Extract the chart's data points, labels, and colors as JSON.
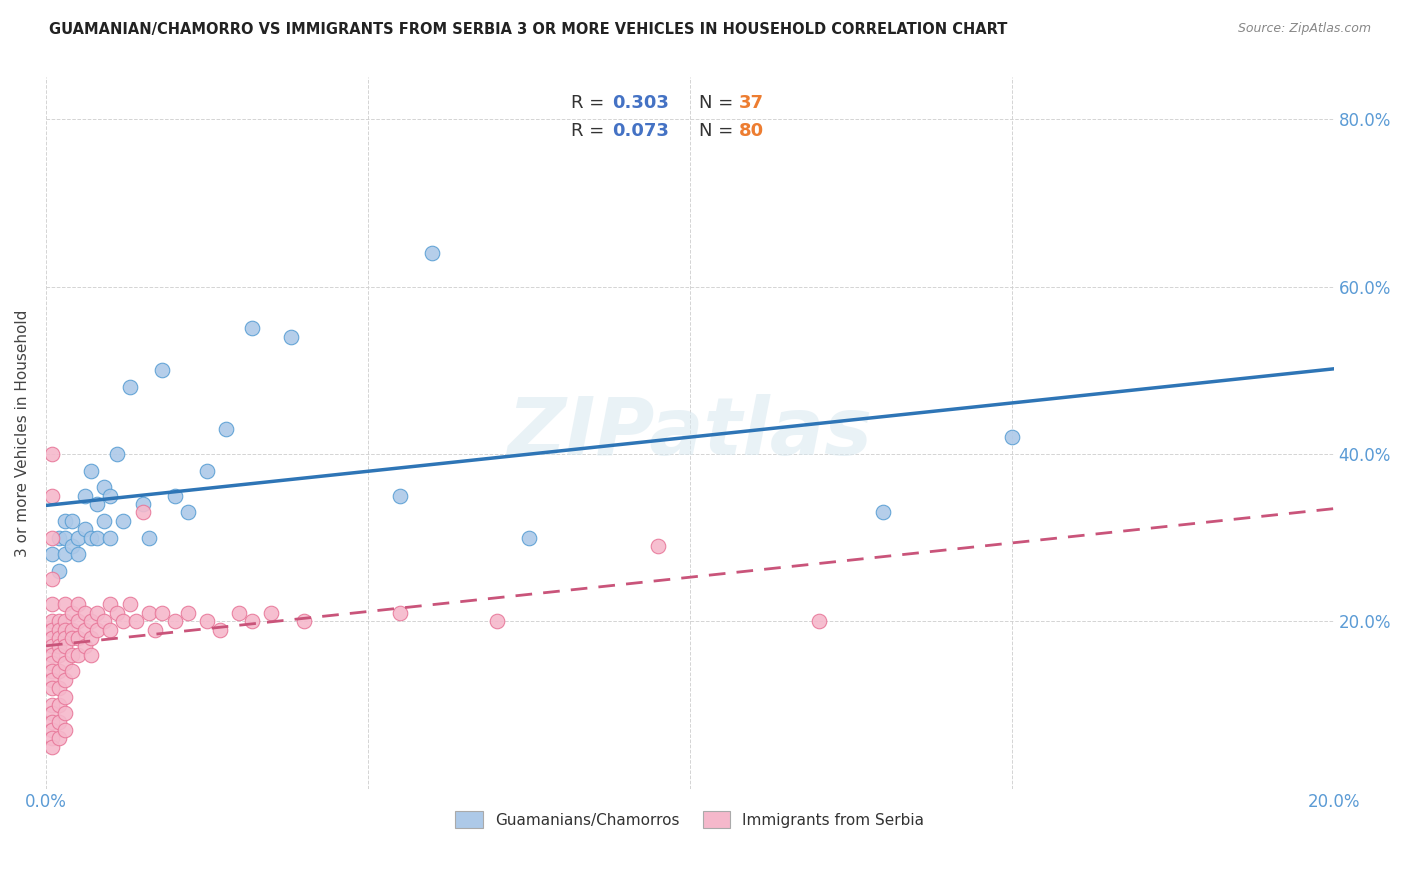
{
  "title": "GUAMANIAN/CHAMORRO VS IMMIGRANTS FROM SERBIA 3 OR MORE VEHICLES IN HOUSEHOLD CORRELATION CHART",
  "source": "Source: ZipAtlas.com",
  "ylabel": "3 or more Vehicles in Household",
  "xlim": [
    0.0,
    0.2
  ],
  "ylim": [
    0.0,
    0.85
  ],
  "x_tick_vals": [
    0.0,
    0.05,
    0.1,
    0.15,
    0.2
  ],
  "x_tick_labels": [
    "0.0%",
    "",
    "",
    "",
    "20.0%"
  ],
  "y_tick_vals": [
    0.0,
    0.2,
    0.4,
    0.6,
    0.8
  ],
  "y_tick_labels_right": [
    "",
    "20.0%",
    "40.0%",
    "60.0%",
    "80.0%"
  ],
  "blue_R": 0.303,
  "blue_N": 37,
  "pink_R": 0.073,
  "pink_N": 80,
  "blue_color": "#adc9e8",
  "pink_color": "#f5b8cb",
  "blue_edge_color": "#5a9fd4",
  "pink_edge_color": "#e8789a",
  "blue_line_color": "#2e75b6",
  "pink_line_color": "#c9547a",
  "watermark": "ZIPatlas",
  "legend_R_color": "#4472c4",
  "legend_N_color": "#ed7d31",
  "bg_color": "#ffffff",
  "grid_color": "#d0d0d0",
  "axis_color": "#5b9bd5",
  "blue_x": [
    0.001,
    0.002,
    0.002,
    0.003,
    0.003,
    0.003,
    0.004,
    0.004,
    0.005,
    0.005,
    0.006,
    0.006,
    0.007,
    0.007,
    0.008,
    0.008,
    0.009,
    0.009,
    0.01,
    0.01,
    0.011,
    0.012,
    0.013,
    0.015,
    0.016,
    0.018,
    0.02,
    0.022,
    0.025,
    0.028,
    0.032,
    0.038,
    0.055,
    0.06,
    0.075,
    0.13,
    0.15
  ],
  "blue_y": [
    0.28,
    0.26,
    0.3,
    0.28,
    0.3,
    0.32,
    0.29,
    0.32,
    0.3,
    0.28,
    0.31,
    0.35,
    0.3,
    0.38,
    0.3,
    0.34,
    0.32,
    0.36,
    0.3,
    0.35,
    0.4,
    0.32,
    0.48,
    0.34,
    0.3,
    0.5,
    0.35,
    0.33,
    0.38,
    0.43,
    0.55,
    0.54,
    0.35,
    0.64,
    0.3,
    0.33,
    0.42
  ],
  "pink_x": [
    0.001,
    0.001,
    0.001,
    0.001,
    0.001,
    0.001,
    0.001,
    0.001,
    0.001,
    0.001,
    0.001,
    0.001,
    0.001,
    0.001,
    0.001,
    0.001,
    0.001,
    0.001,
    0.001,
    0.001,
    0.002,
    0.002,
    0.002,
    0.002,
    0.002,
    0.002,
    0.002,
    0.002,
    0.002,
    0.002,
    0.003,
    0.003,
    0.003,
    0.003,
    0.003,
    0.003,
    0.003,
    0.003,
    0.003,
    0.003,
    0.004,
    0.004,
    0.004,
    0.004,
    0.004,
    0.005,
    0.005,
    0.005,
    0.005,
    0.006,
    0.006,
    0.006,
    0.007,
    0.007,
    0.007,
    0.008,
    0.008,
    0.009,
    0.01,
    0.01,
    0.011,
    0.012,
    0.013,
    0.014,
    0.015,
    0.016,
    0.017,
    0.018,
    0.02,
    0.022,
    0.025,
    0.027,
    0.03,
    0.032,
    0.035,
    0.04,
    0.055,
    0.07,
    0.095,
    0.12
  ],
  "pink_y": [
    0.22,
    0.2,
    0.19,
    0.18,
    0.17,
    0.16,
    0.15,
    0.14,
    0.13,
    0.12,
    0.1,
    0.09,
    0.08,
    0.07,
    0.06,
    0.05,
    0.25,
    0.3,
    0.35,
    0.4,
    0.2,
    0.19,
    0.18,
    0.17,
    0.16,
    0.14,
    0.12,
    0.1,
    0.08,
    0.06,
    0.22,
    0.2,
    0.19,
    0.18,
    0.17,
    0.15,
    0.13,
    0.11,
    0.09,
    0.07,
    0.21,
    0.19,
    0.18,
    0.16,
    0.14,
    0.22,
    0.2,
    0.18,
    0.16,
    0.21,
    0.19,
    0.17,
    0.2,
    0.18,
    0.16,
    0.21,
    0.19,
    0.2,
    0.22,
    0.19,
    0.21,
    0.2,
    0.22,
    0.2,
    0.33,
    0.21,
    0.19,
    0.21,
    0.2,
    0.21,
    0.2,
    0.19,
    0.21,
    0.2,
    0.21,
    0.2,
    0.21,
    0.2,
    0.29,
    0.2
  ]
}
